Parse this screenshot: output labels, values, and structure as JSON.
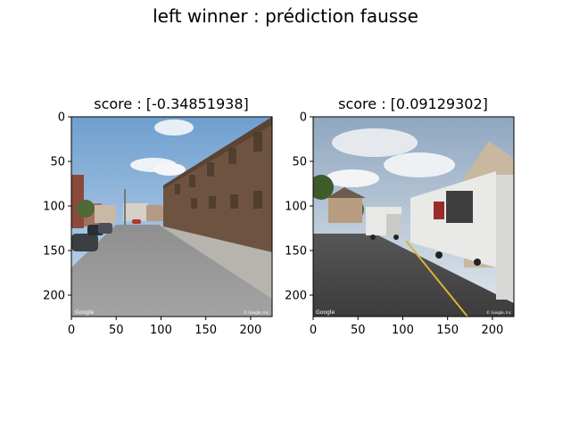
{
  "figure": {
    "title": "left winner : prédiction fausse"
  },
  "chart_data": [
    {
      "type": "image",
      "title": "score : [-0.34851938]",
      "xlim": [
        0,
        224
      ],
      "ylim": [
        224,
        0
      ],
      "xticks": [
        0,
        50,
        100,
        150,
        200
      ],
      "yticks": [
        0,
        50,
        100,
        150,
        200
      ],
      "watermarks": [
        "Google",
        "© Google, Inc"
      ],
      "scene": "street-brick-building"
    },
    {
      "type": "image",
      "title": "score : [0.09129302]",
      "xlim": [
        0,
        224
      ],
      "ylim": [
        224,
        0
      ],
      "xticks": [
        0,
        50,
        100,
        150,
        200
      ],
      "yticks": [
        0,
        50,
        100,
        150,
        200
      ],
      "watermarks": [
        "Google",
        "© Google, Inc"
      ],
      "scene": "street-trucks"
    }
  ]
}
